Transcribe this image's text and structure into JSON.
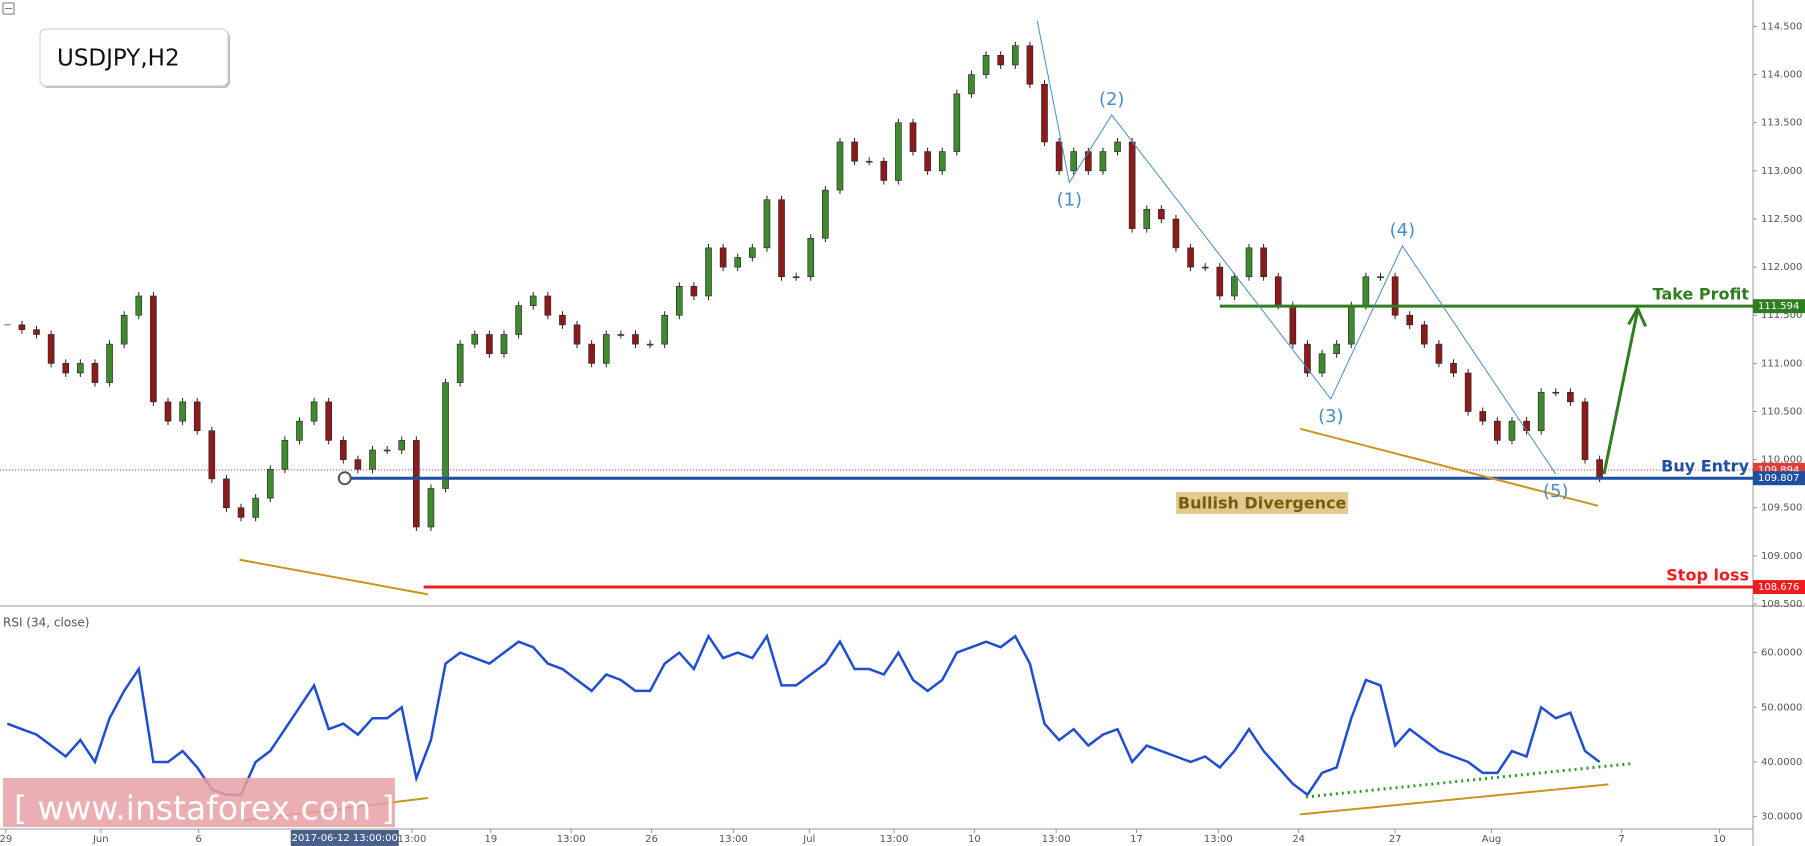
{
  "chart_data": [
    {
      "type": "candlestick",
      "title": "USDJPY,H2",
      "closes": [
        111.4,
        111.35,
        111.3,
        111.0,
        110.9,
        111.0,
        110.8,
        111.2,
        111.5,
        111.7,
        110.6,
        110.4,
        110.6,
        110.3,
        109.8,
        109.5,
        109.4,
        109.6,
        109.9,
        110.2,
        110.4,
        110.6,
        110.2,
        110.0,
        109.9,
        110.1,
        110.1,
        110.2,
        109.3,
        109.7,
        110.8,
        111.2,
        111.3,
        111.1,
        111.3,
        111.6,
        111.7,
        111.5,
        111.4,
        111.2,
        111.0,
        111.3,
        111.3,
        111.2,
        111.2,
        111.5,
        111.8,
        111.7,
        112.2,
        112.0,
        112.1,
        112.2,
        112.7,
        111.9,
        111.9,
        112.3,
        112.8,
        113.3,
        113.1,
        113.1,
        112.9,
        113.5,
        113.2,
        113.0,
        113.2,
        113.8,
        114.0,
        114.2,
        114.1,
        114.3,
        113.9,
        113.3,
        113.0,
        113.2,
        113.0,
        113.2,
        113.3,
        112.4,
        112.6,
        112.5,
        112.2,
        112.0,
        112.0,
        111.7,
        111.9,
        112.2,
        111.9,
        111.6,
        111.2,
        110.9,
        111.1,
        111.2,
        111.6,
        111.9,
        111.9,
        111.5,
        111.4,
        111.2,
        111.0,
        110.9,
        110.5,
        110.4,
        110.2,
        110.4,
        110.3,
        110.7,
        110.7,
        110.6,
        110.0,
        109.807
      ],
      "up_color": "#3f8a2e",
      "down_color": "#8e1b1b",
      "xlim": [
        0,
        120
      ],
      "ylim": [
        108.5,
        114.775
      ],
      "yticks": [
        {
          "value": 108.5,
          "label": "108.500"
        },
        {
          "value": 109,
          "label": "109.000"
        },
        {
          "value": 109.5,
          "label": "109.500"
        },
        {
          "value": 110,
          "label": "110.000"
        },
        {
          "value": 110.5,
          "label": "110.500"
        },
        {
          "value": 111,
          "label": "111.000"
        },
        {
          "value": 111.5,
          "label": "111.500"
        },
        {
          "value": 112,
          "label": "112.000"
        },
        {
          "value": 112.5,
          "label": "112.500"
        },
        {
          "value": 113,
          "label": "113.000"
        },
        {
          "value": 113.5,
          "label": "113.500"
        },
        {
          "value": 114,
          "label": "114.000"
        },
        {
          "value": 114.5,
          "label": "114.500"
        }
      ],
      "levels": [
        {
          "name": "Take Profit",
          "value": 111.594,
          "value_label": "111.594",
          "start": 83.5,
          "color": "#2e7d1e"
        },
        {
          "name": "Buy Entry",
          "value": 109.807,
          "value_label": "109.807",
          "start": 23.6,
          "color": "#1f4fa0"
        },
        {
          "name": "Stop loss",
          "value": 108.676,
          "value_label": "108.676",
          "start": 29,
          "color": "#ee1c1c"
        }
      ],
      "current_price": {
        "value": 109.894,
        "label": "109.894",
        "color": "#e03c3c"
      },
      "waves": {
        "x": [
          71,
          73.2,
          76.1,
          91.1,
          96,
          106.5
        ],
        "y": [
          114.56,
          112.88,
          113.58,
          110.63,
          112.22,
          109.85
        ],
        "labels": [
          "(1)",
          "(2)",
          "(3)",
          "(4)",
          "(5)"
        ],
        "color": "#4a8cc4"
      },
      "trendlines": [
        {
          "x": [
            16.4,
            29.3
          ],
          "y": [
            108.96,
            108.6
          ],
          "color": "#c8961e"
        },
        {
          "x": [
            89,
            109.4
          ],
          "y": [
            110.32,
            109.52
          ],
          "color": "#c8961e"
        }
      ],
      "arrow": {
        "x": [
          109.8,
          112.1
        ],
        "y": [
          109.85,
          111.55
        ],
        "color": "#2e7d1e"
      },
      "annotation": {
        "text": "Bullish Divergence",
        "x": 86.4,
        "y": 109.55
      },
      "crosshair": {
        "x": 23.6,
        "y": 109.807,
        "label": "2017-06-12 13:00:00"
      }
    },
    {
      "type": "line",
      "title": "RSI (34, close)",
      "values": [
        47,
        46,
        45,
        43,
        41,
        44,
        40,
        48,
        53,
        57,
        40,
        40,
        42,
        39,
        35,
        34,
        34,
        40,
        42,
        46,
        50,
        54,
        46,
        47,
        45,
        48,
        48,
        50,
        37,
        44,
        58,
        60,
        59,
        58,
        60,
        62,
        61,
        58,
        57,
        55,
        53,
        56,
        55,
        53,
        53,
        58,
        60,
        57,
        63,
        59,
        60,
        59,
        63,
        54,
        54,
        56,
        58,
        62,
        57,
        57,
        56,
        60,
        55,
        53,
        55,
        60,
        61,
        62,
        61,
        63,
        58,
        47,
        44,
        46,
        43,
        45,
        46,
        40,
        43,
        42,
        41,
        40,
        41,
        39,
        42,
        46,
        42,
        39,
        36,
        34,
        38,
        39,
        48,
        55,
        54,
        43,
        46,
        44,
        42,
        41,
        40,
        38,
        38,
        42,
        41,
        50,
        48,
        49,
        42,
        40
      ],
      "color": "#1f4fd0",
      "xlim": [
        0,
        120
      ],
      "ylim": [
        28.1,
        67.8
      ],
      "yticks": [
        {
          "value": 30,
          "label": "30.0000"
        },
        {
          "value": 40,
          "label": "40.0000"
        },
        {
          "value": 50,
          "label": "50.0000"
        },
        {
          "value": 60,
          "label": "60.0000"
        }
      ],
      "xticks": [
        {
          "value": 0.4,
          "label": "29"
        },
        {
          "value": 6.9,
          "label": "Jun"
        },
        {
          "value": 13.6,
          "label": "6"
        },
        {
          "value": 28.2,
          "label": "13:00"
        },
        {
          "value": 33.6,
          "label": "19"
        },
        {
          "value": 39.1,
          "label": "13:00"
        },
        {
          "value": 44.6,
          "label": "26"
        },
        {
          "value": 50.2,
          "label": "13:00"
        },
        {
          "value": 55.4,
          "label": "Jul"
        },
        {
          "value": 61.2,
          "label": "13:00"
        },
        {
          "value": 66.7,
          "label": "10"
        },
        {
          "value": 72.3,
          "label": "13:00"
        },
        {
          "value": 77.8,
          "label": "17"
        },
        {
          "value": 83.4,
          "label": "13:00"
        },
        {
          "value": 88.9,
          "label": "24"
        },
        {
          "value": 95.5,
          "label": "27"
        },
        {
          "value": 102.1,
          "label": "Aug"
        },
        {
          "value": 111,
          "label": "7"
        },
        {
          "value": 117.7,
          "label": "10"
        }
      ],
      "trendlines": [
        {
          "x": [
            16.7,
            29.3
          ],
          "y": [
            29.3,
            33.4
          ],
          "color": "#c8961e"
        },
        {
          "x": [
            89,
            110.1
          ],
          "y": [
            30.4,
            35.9
          ],
          "color": "#c8961e"
        },
        {
          "x": [
            89.4,
            111.7
          ],
          "y": [
            33.6,
            39.7
          ],
          "color": "#2e9a2e",
          "dashed": true
        }
      ]
    }
  ],
  "watermark": "[ www.instaforex.com ]"
}
